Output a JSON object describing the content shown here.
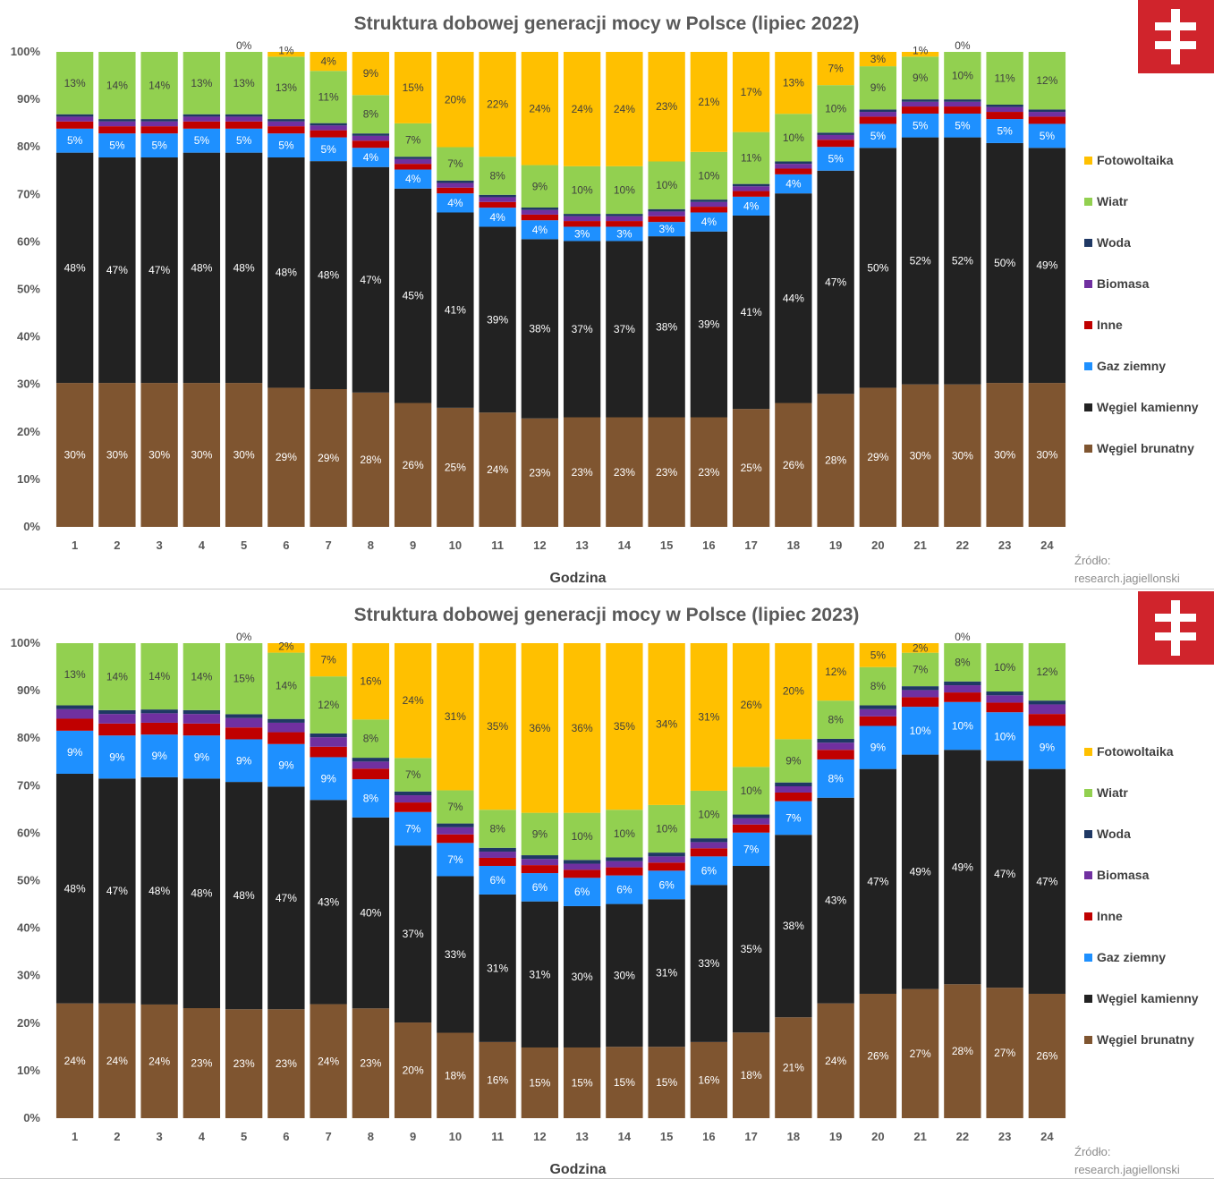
{
  "colors": {
    "brunatny": "#7f5530",
    "kamienny": "#222222",
    "gaz": "#1e90ff",
    "inne": "#c00000",
    "biomasa": "#7030a0",
    "woda": "#1f3864",
    "wiatr": "#92d050",
    "fotowoltaika": "#ffc000",
    "logo": "#d0242c"
  },
  "logo": {
    "icon": "double-cross-icon"
  },
  "source": {
    "line1": "Źródło:",
    "line2": "research.jagiellonski"
  },
  "chart_data": [
    {
      "type": "bar",
      "stacked": "percent",
      "title": "Struktura dobowej generacji mocy w Polsce (lipiec 2022)",
      "xlabel": "Godzina",
      "ylabel": "",
      "ylim": [
        0,
        100
      ],
      "yticks": [
        "0%",
        "10%",
        "20%",
        "30%",
        "40%",
        "50%",
        "60%",
        "70%",
        "80%",
        "90%",
        "100%"
      ],
      "legend_position": "right",
      "categories": [
        "1",
        "2",
        "3",
        "4",
        "5",
        "6",
        "7",
        "8",
        "9",
        "10",
        "11",
        "12",
        "13",
        "14",
        "15",
        "16",
        "17",
        "18",
        "19",
        "20",
        "21",
        "22",
        "23",
        "24"
      ],
      "series": [
        {
          "name": "Węgiel brunatny",
          "color_key": "brunatny",
          "label_color": "#ffffff",
          "values": [
            30,
            30,
            30,
            30,
            30,
            29,
            29,
            28,
            26,
            25,
            24,
            23,
            23,
            23,
            23,
            23,
            25,
            26,
            28,
            29,
            30,
            30,
            30,
            30
          ],
          "labels": [
            "30%",
            "30%",
            "30%",
            "30%",
            "30%",
            "29%",
            "29%",
            "28%",
            "26%",
            "25%",
            "24%",
            "23%",
            "23%",
            "23%",
            "23%",
            "23%",
            "25%",
            "26%",
            "28%",
            "29%",
            "30%",
            "30%",
            "30%",
            "30%"
          ]
        },
        {
          "name": "Węgiel kamienny",
          "color_key": "kamienny",
          "label_color": "#ffffff",
          "values": [
            48,
            47,
            47,
            48,
            48,
            48,
            48,
            47,
            45,
            41,
            39,
            38,
            37,
            37,
            38,
            39,
            41,
            44,
            47,
            50,
            52,
            52,
            50,
            49
          ],
          "labels": [
            "48%",
            "47%",
            "47%",
            "48%",
            "48%",
            "48%",
            "48%",
            "47%",
            "45%",
            "41%",
            "39%",
            "38%",
            "37%",
            "37%",
            "38%",
            "39%",
            "41%",
            "44%",
            "47%",
            "50%",
            "52%",
            "52%",
            "50%",
            "49%"
          ]
        },
        {
          "name": "Gaz ziemny",
          "color_key": "gaz",
          "label_color": "#ffffff",
          "values": [
            5,
            5,
            5,
            5,
            5,
            5,
            5,
            4,
            4,
            4,
            4,
            4,
            3,
            3,
            3,
            4,
            4,
            4,
            5,
            5,
            5,
            5,
            5,
            5
          ],
          "labels": [
            "5%",
            "5%",
            "5%",
            "5%",
            "5%",
            "5%",
            "5%",
            "4%",
            "4%",
            "4%",
            "4%",
            "4%",
            "3%",
            "3%",
            "3%",
            "4%",
            "4%",
            "4%",
            "5%",
            "5%",
            "5%",
            "5%",
            "5%",
            "5%"
          ]
        },
        {
          "name": "Inne",
          "color_key": "inne",
          "label_color": "#ffffff",
          "values": [
            1.5,
            1.5,
            1.5,
            1.5,
            1.5,
            1.5,
            1.5,
            1.5,
            1.2,
            1.2,
            1.2,
            1.2,
            1.2,
            1.2,
            1.2,
            1.2,
            1.2,
            1.2,
            1.5,
            1.5,
            1.5,
            1.5,
            1.5,
            1.5
          ],
          "labels": []
        },
        {
          "name": "Biomasa",
          "color_key": "biomasa",
          "label_color": "#ffffff",
          "values": [
            1,
            1,
            1,
            1,
            1,
            1,
            1,
            1,
            1,
            1,
            1,
            1,
            1,
            1,
            1,
            1,
            1,
            1,
            1,
            1,
            1,
            1,
            1,
            1
          ],
          "labels": []
        },
        {
          "name": "Woda",
          "color_key": "woda",
          "label_color": "#ffffff",
          "values": [
            0.5,
            0.5,
            0.5,
            0.5,
            0.5,
            0.5,
            0.5,
            0.5,
            0.5,
            0.5,
            0.5,
            0.5,
            0.5,
            0.5,
            0.5,
            0.5,
            0.5,
            0.5,
            0.5,
            0.5,
            0.5,
            0.5,
            0.5,
            0.5
          ],
          "labels": []
        },
        {
          "name": "Wiatr",
          "color_key": "wiatr",
          "label_color": "#404040",
          "values": [
            13,
            14,
            14,
            13,
            13,
            13,
            11,
            8,
            7,
            7,
            8,
            9,
            10,
            10,
            10,
            10,
            11,
            10,
            10,
            9,
            9,
            10,
            11,
            12
          ],
          "labels": [
            "13%",
            "14%",
            "14%",
            "13%",
            "13%",
            "13%",
            "11%",
            "8%",
            "7%",
            "7%",
            "8%",
            "9%",
            "10%",
            "10%",
            "10%",
            "10%",
            "11%",
            "10%",
            "10%",
            "9%",
            "9%",
            "10%",
            "11%",
            "12%"
          ]
        },
        {
          "name": "Fotowoltaika",
          "color_key": "fotowoltaika",
          "label_color": "#404040",
          "values": [
            0,
            0,
            0,
            0,
            0,
            1,
            4,
            9,
            15,
            20,
            22,
            24,
            24,
            24,
            23,
            21,
            17,
            13,
            7,
            3,
            1,
            0,
            0,
            0
          ],
          "labels": [
            "",
            "",
            "",
            "",
            "0%",
            "1%",
            "4%",
            "9%",
            "15%",
            "20%",
            "22%",
            "24%",
            "24%",
            "24%",
            "23%",
            "21%",
            "17%",
            "13%",
            "7%",
            "3%",
            "1%",
            "0%",
            "",
            ""
          ]
        }
      ]
    },
    {
      "type": "bar",
      "stacked": "percent",
      "title": "Struktura dobowej generacji mocy w Polsce (lipiec 2023)",
      "xlabel": "Godzina",
      "ylabel": "",
      "ylim": [
        0,
        100
      ],
      "yticks": [
        "0%",
        "10%",
        "20%",
        "30%",
        "40%",
        "50%",
        "60%",
        "70%",
        "80%",
        "90%",
        "100%"
      ],
      "legend_position": "right",
      "categories": [
        "1",
        "2",
        "3",
        "4",
        "5",
        "6",
        "7",
        "8",
        "9",
        "10",
        "11",
        "12",
        "13",
        "14",
        "15",
        "16",
        "17",
        "18",
        "19",
        "20",
        "21",
        "22",
        "23",
        "24"
      ],
      "series": [
        {
          "name": "Węgiel brunatny",
          "color_key": "brunatny",
          "label_color": "#ffffff",
          "values": [
            24,
            24,
            24,
            23,
            23,
            23,
            24,
            23,
            20,
            18,
            16,
            15,
            15,
            15,
            15,
            16,
            18,
            21,
            24,
            26,
            27,
            28,
            27,
            26
          ],
          "labels": [
            "24%",
            "24%",
            "24%",
            "23%",
            "23%",
            "23%",
            "24%",
            "23%",
            "20%",
            "18%",
            "16%",
            "15%",
            "15%",
            "15%",
            "15%",
            "16%",
            "18%",
            "21%",
            "24%",
            "26%",
            "27%",
            "28%",
            "27%",
            "26%"
          ]
        },
        {
          "name": "Węgiel kamienny",
          "color_key": "kamienny",
          "label_color": "#ffffff",
          "values": [
            48,
            47,
            48,
            48,
            48,
            47,
            43,
            40,
            37,
            33,
            31,
            31,
            30,
            30,
            31,
            33,
            35,
            38,
            43,
            47,
            49,
            49,
            47,
            47
          ],
          "labels": [
            "48%",
            "47%",
            "48%",
            "48%",
            "48%",
            "47%",
            "43%",
            "40%",
            "37%",
            "33%",
            "31%",
            "31%",
            "30%",
            "30%",
            "31%",
            "33%",
            "35%",
            "38%",
            "43%",
            "47%",
            "49%",
            "49%",
            "47%",
            "47%"
          ]
        },
        {
          "name": "Gaz ziemny",
          "color_key": "gaz",
          "label_color": "#ffffff",
          "values": [
            9,
            9,
            9,
            9,
            9,
            9,
            9,
            8,
            7,
            7,
            6,
            6,
            6,
            6,
            6,
            6,
            7,
            7,
            8,
            9,
            10,
            10,
            10,
            9
          ],
          "labels": [
            "9%",
            "9%",
            "9%",
            "9%",
            "9%",
            "9%",
            "9%",
            "8%",
            "7%",
            "7%",
            "6%",
            "6%",
            "6%",
            "6%",
            "6%",
            "6%",
            "7%",
            "7%",
            "8%",
            "9%",
            "10%",
            "10%",
            "10%",
            "9%"
          ]
        },
        {
          "name": "Inne",
          "color_key": "inne",
          "label_color": "#ffffff",
          "values": [
            2.5,
            2.5,
            2.5,
            2.5,
            2.5,
            2.5,
            2.2,
            2.2,
            2,
            1.8,
            1.7,
            1.7,
            1.7,
            1.7,
            1.7,
            1.7,
            1.7,
            1.8,
            2,
            2,
            2,
            2,
            2,
            2.5
          ],
          "labels": []
        },
        {
          "name": "Biomasa",
          "color_key": "biomasa",
          "label_color": "#ffffff",
          "values": [
            2,
            2,
            2,
            2,
            2,
            2,
            2,
            1.5,
            1.5,
            1.5,
            1.3,
            1.3,
            1.3,
            1.3,
            1.3,
            1.3,
            1.3,
            1.3,
            1.5,
            1.5,
            1.5,
            1.5,
            1.5,
            2
          ],
          "labels": []
        },
        {
          "name": "Woda",
          "color_key": "woda",
          "label_color": "#ffffff",
          "values": [
            0.8,
            0.8,
            0.8,
            0.8,
            0.8,
            0.8,
            0.8,
            0.8,
            0.8,
            0.8,
            0.8,
            0.8,
            0.8,
            0.8,
            0.8,
            0.8,
            0.8,
            0.8,
            0.8,
            0.8,
            0.8,
            0.8,
            0.8,
            0.8
          ],
          "labels": []
        },
        {
          "name": "Wiatr",
          "color_key": "wiatr",
          "label_color": "#404040",
          "values": [
            13,
            14,
            14,
            14,
            15,
            14,
            12,
            8,
            7,
            7,
            8,
            9,
            10,
            10,
            10,
            10,
            10,
            9,
            8,
            8,
            7,
            8,
            10,
            12
          ],
          "labels": [
            "13%",
            "14%",
            "14%",
            "14%",
            "15%",
            "14%",
            "12%",
            "8%",
            "7%",
            "7%",
            "8%",
            "9%",
            "10%",
            "10%",
            "10%",
            "10%",
            "10%",
            "9%",
            "8%",
            "8%",
            "7%",
            "8%",
            "10%",
            "12%"
          ]
        },
        {
          "name": "Fotowoltaika",
          "color_key": "fotowoltaika",
          "label_color": "#404040",
          "values": [
            0,
            0,
            0,
            0,
            0,
            2,
            7,
            16,
            24,
            31,
            35,
            36,
            36,
            35,
            34,
            31,
            26,
            20,
            12,
            5,
            2,
            0,
            0,
            0
          ],
          "labels": [
            "",
            "",
            "",
            "",
            "0%",
            "2%",
            "7%",
            "16%",
            "24%",
            "31%",
            "35%",
            "36%",
            "36%",
            "35%",
            "34%",
            "31%",
            "26%",
            "20%",
            "12%",
            "5%",
            "2%",
            "0%",
            "",
            ""
          ]
        }
      ]
    }
  ]
}
